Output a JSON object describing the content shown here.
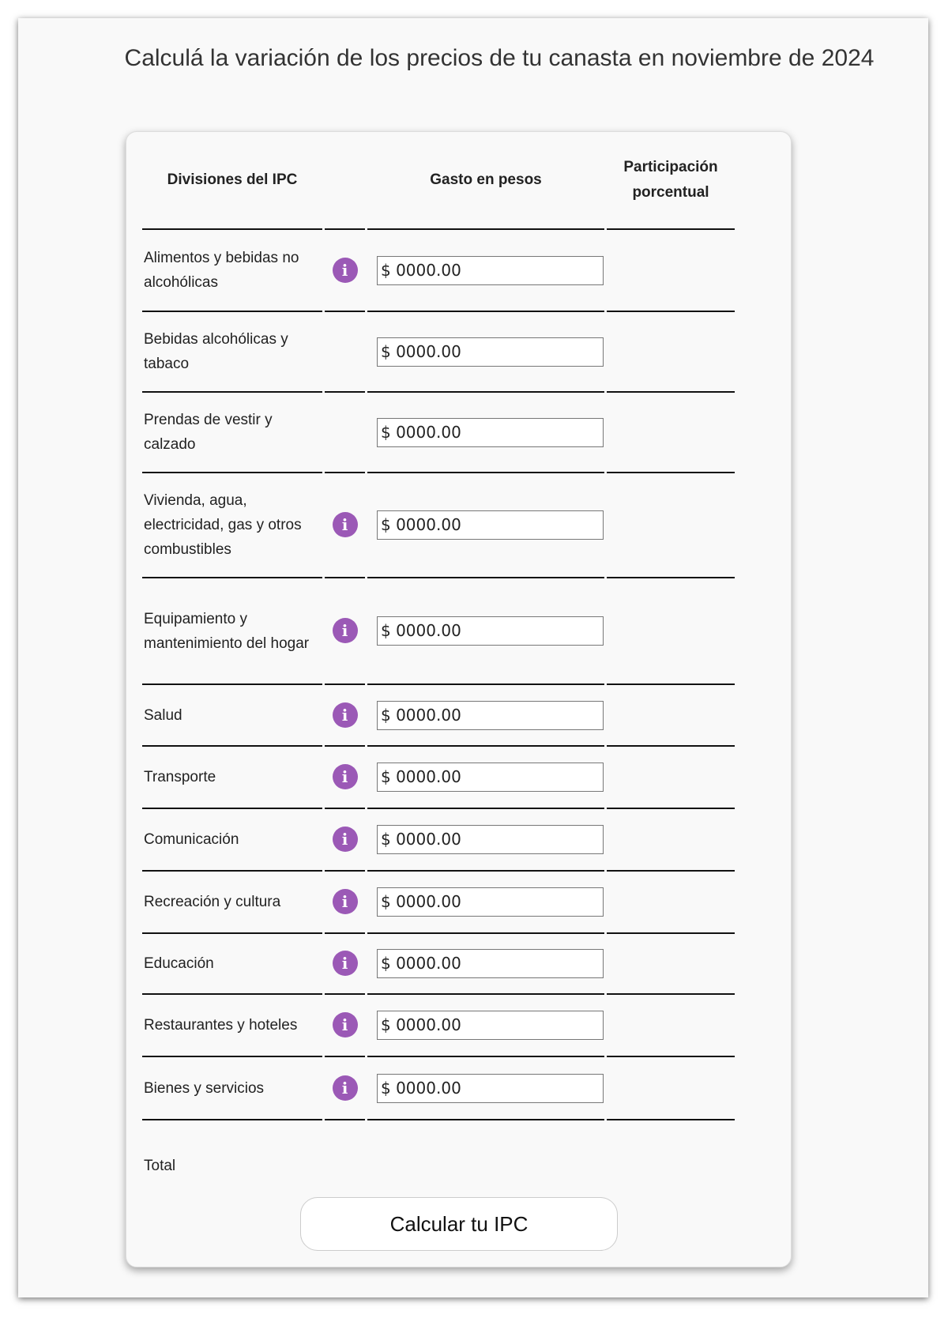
{
  "title": "Calculá la variación de los precios de tu canasta en noviembre de 2024",
  "table": {
    "headers": {
      "division": "Divisiones del IPC",
      "gasto": "Gasto en pesos",
      "participacion": "Participación porcentual"
    },
    "rows": [
      {
        "label": "Alimentos y bebidas no alcohólicas",
        "info": true,
        "value": "$ 0000.00"
      },
      {
        "label": "Bebidas alcohólicas y tabaco",
        "info": false,
        "value": "$ 0000.00"
      },
      {
        "label": "Prendas de vestir y calzado",
        "info": false,
        "value": "$ 0000.00"
      },
      {
        "label": "Vivienda, agua, electricidad, gas y otros combustibles",
        "info": true,
        "value": "$ 0000.00"
      },
      {
        "label": "Equipamiento y mantenimiento del hogar",
        "info": true,
        "value": "$ 0000.00"
      },
      {
        "label": "Salud",
        "info": true,
        "value": "$ 0000.00"
      },
      {
        "label": "Transporte",
        "info": true,
        "value": "$ 0000.00"
      },
      {
        "label": "Comunicación",
        "info": true,
        "value": "$ 0000.00"
      },
      {
        "label": "Recreación y cultura",
        "info": true,
        "value": "$ 0000.00"
      },
      {
        "label": "Educación",
        "info": true,
        "value": "$ 0000.00"
      },
      {
        "label": "Restaurantes y hoteles",
        "info": true,
        "value": "$ 0000.00"
      },
      {
        "label": "Bienes y servicios",
        "info": true,
        "value": "$ 0000.00"
      }
    ],
    "info_icon_glyph": "i",
    "info_icon_color": "#9b59b6"
  },
  "total_label": "Total",
  "button_label": "Calcular tu IPC"
}
